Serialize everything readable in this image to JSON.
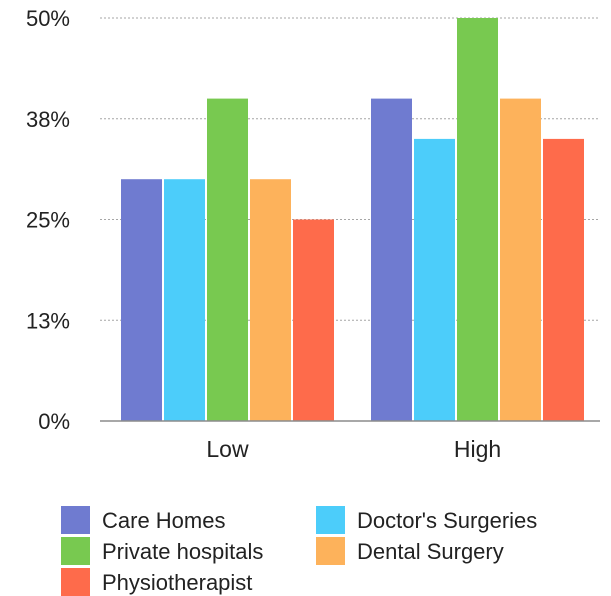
{
  "chart_data": {
    "type": "bar",
    "categories": [
      "Low",
      "High"
    ],
    "series": [
      {
        "name": "Care Homes",
        "color": "#6f7bd0",
        "values": [
          30,
          40
        ]
      },
      {
        "name": "Doctor's Surgeries",
        "color": "#4ccdfa",
        "values": [
          30,
          35
        ]
      },
      {
        "name": "Private hospitals",
        "color": "#78c950",
        "values": [
          40,
          50
        ]
      },
      {
        "name": "Dental Surgery",
        "color": "#fdb25b",
        "values": [
          30,
          40
        ]
      },
      {
        "name": "Physiotherapist",
        "color": "#fe6b4b",
        "values": [
          25,
          35
        ]
      }
    ],
    "yticks": [
      0,
      12.5,
      25,
      37.5,
      50
    ],
    "ytick_labels": [
      "0%",
      "13%",
      "25%",
      "38%",
      "50%"
    ],
    "ylim": [
      0,
      50
    ],
    "title": "",
    "xlabel": "",
    "ylabel": "",
    "grid": "horizontal-dotted",
    "legend_position": "bottom"
  }
}
